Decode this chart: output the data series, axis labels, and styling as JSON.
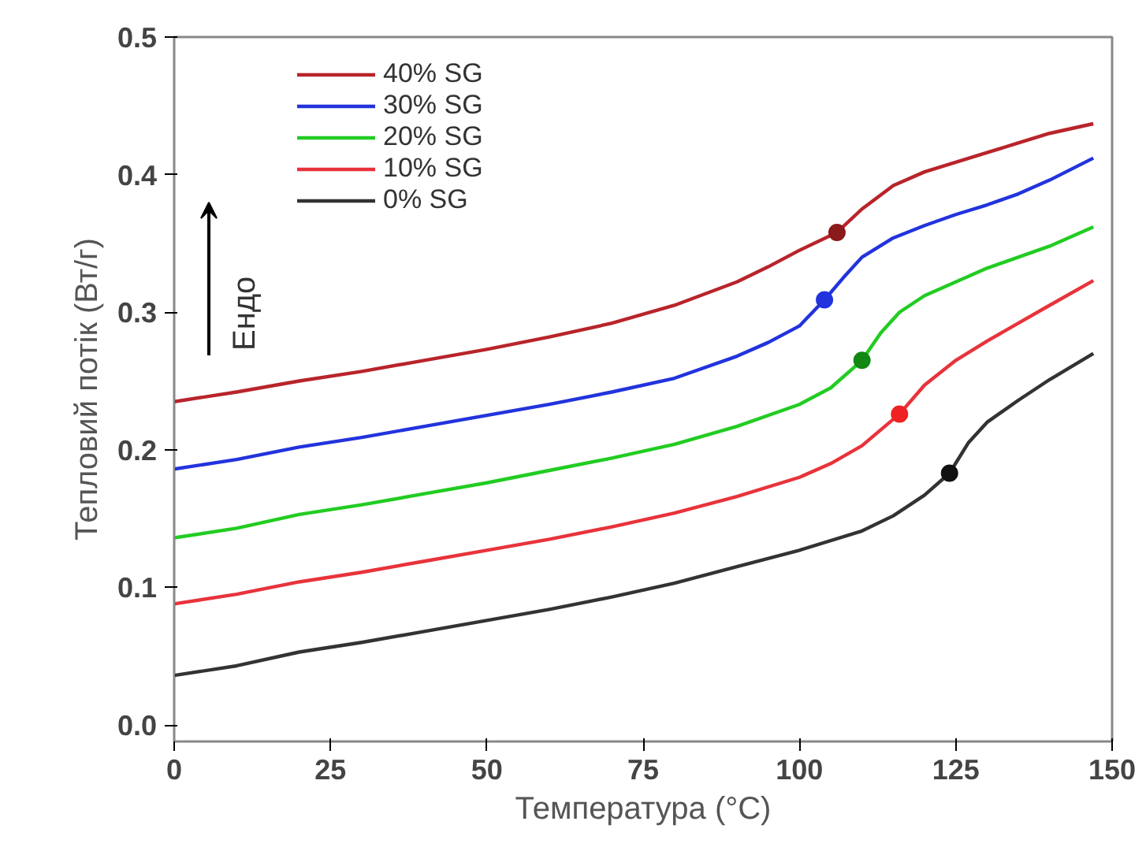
{
  "chart_data": {
    "type": "line",
    "xlabel": "Температура (°C)",
    "ylabel": "Тепловий потік (Вт/г)",
    "annotations": [
      "Ендо"
    ],
    "xlim": [
      0,
      150
    ],
    "ylim": [
      -0.012,
      0.5
    ],
    "xticks": [
      0,
      25,
      50,
      75,
      100,
      125,
      150
    ],
    "yticks": [
      {
        "value": 0,
        "label": "0.0"
      },
      0.1,
      0.2,
      0.3,
      0.4,
      0.5
    ],
    "grid": false,
    "legend": "top left",
    "marker": "none",
    "line_style": "solid",
    "series": [
      {
        "name": "40% SG",
        "color": "#b8242a",
        "x": [
          0,
          10,
          20,
          30,
          40,
          50,
          60,
          70,
          80,
          90,
          95,
          100,
          106,
          110,
          115,
          120,
          125,
          130,
          135,
          140,
          147
        ],
        "values": [
          0.235,
          0.242,
          0.25,
          0.257,
          0.265,
          0.273,
          0.282,
          0.292,
          0.305,
          0.322,
          0.333,
          0.345,
          0.358,
          0.375,
          0.392,
          0.402,
          0.409,
          0.416,
          0.423,
          0.43,
          0.437
        ]
      },
      {
        "name": "30% SG",
        "color": "#2233dd",
        "x": [
          0,
          10,
          20,
          30,
          40,
          50,
          60,
          70,
          80,
          90,
          95,
          100,
          104,
          107,
          110,
          115,
          120,
          125,
          130,
          135,
          140,
          147
        ],
        "values": [
          0.186,
          0.193,
          0.202,
          0.209,
          0.217,
          0.225,
          0.233,
          0.242,
          0.252,
          0.268,
          0.278,
          0.29,
          0.309,
          0.325,
          0.34,
          0.354,
          0.363,
          0.371,
          0.378,
          0.386,
          0.396,
          0.412
        ]
      },
      {
        "name": "20% SG",
        "color": "#22cc22",
        "x": [
          0,
          10,
          20,
          30,
          40,
          50,
          60,
          70,
          80,
          90,
          100,
          105,
          110,
          113,
          116,
          120,
          125,
          130,
          135,
          140,
          147
        ],
        "values": [
          0.136,
          0.143,
          0.153,
          0.16,
          0.168,
          0.176,
          0.185,
          0.194,
          0.204,
          0.217,
          0.233,
          0.245,
          0.265,
          0.285,
          0.3,
          0.312,
          0.322,
          0.332,
          0.34,
          0.348,
          0.362
        ]
      },
      {
        "name": "10% SG",
        "color": "#e8333b",
        "x": [
          0,
          10,
          20,
          30,
          40,
          50,
          60,
          70,
          80,
          90,
          100,
          105,
          110,
          116,
          120,
          125,
          130,
          135,
          140,
          147
        ],
        "values": [
          0.088,
          0.095,
          0.104,
          0.111,
          0.119,
          0.127,
          0.135,
          0.144,
          0.154,
          0.166,
          0.18,
          0.19,
          0.203,
          0.226,
          0.247,
          0.265,
          0.279,
          0.292,
          0.305,
          0.323
        ]
      },
      {
        "name": "0% SG",
        "color": "#333333",
        "x": [
          0,
          10,
          20,
          30,
          40,
          50,
          60,
          70,
          80,
          90,
          100,
          110,
          115,
          120,
          124,
          127,
          130,
          135,
          140,
          147
        ],
        "values": [
          0.036,
          0.043,
          0.053,
          0.06,
          0.068,
          0.076,
          0.084,
          0.093,
          0.103,
          0.115,
          0.127,
          0.141,
          0.152,
          0.167,
          0.183,
          0.205,
          0.22,
          0.236,
          0.251,
          0.27
        ]
      },
      {
        "type": "scatter",
        "marker": "circle",
        "color": "#8b1a1a",
        "x": [
          106
        ],
        "values": [
          0.358
        ]
      },
      {
        "type": "scatter",
        "marker": "circle",
        "color": "#2233dd",
        "x": [
          104
        ],
        "values": [
          0.309
        ]
      },
      {
        "type": "scatter",
        "marker": "circle",
        "color": "#118811",
        "x": [
          110
        ],
        "values": [
          0.265
        ]
      },
      {
        "type": "scatter",
        "marker": "circle",
        "color": "#ee2222",
        "x": [
          116
        ],
        "values": [
          0.226
        ]
      },
      {
        "type": "scatter",
        "marker": "circle",
        "color": "#111111",
        "x": [
          124
        ],
        "values": [
          0.183
        ]
      }
    ]
  }
}
